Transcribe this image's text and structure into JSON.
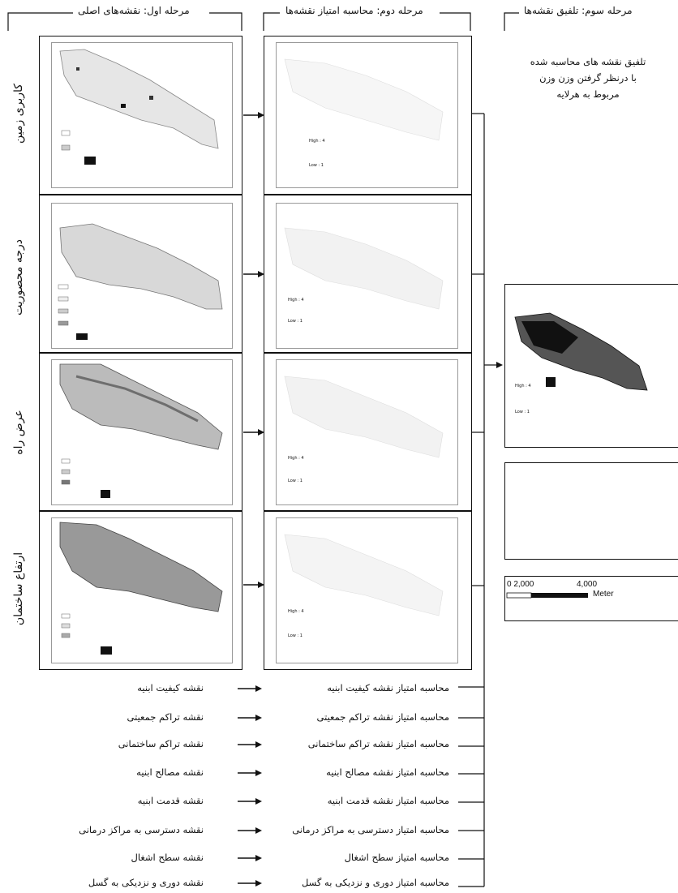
{
  "stages": {
    "stage1_title": "مرحله اول: نقشه‌های اصلی",
    "stage2_title": "مرحله دوم: محاسبه امتیاز نقشه‌ها",
    "stage3_title": "مرحله سوم: تلفیق نقشه‌ها"
  },
  "stage1_rows": [
    {
      "label": "کاربری زمین"
    },
    {
      "label": "درجه محصوریت"
    },
    {
      "label": "عرض راه"
    },
    {
      "label": "ارتفاع ساختمان"
    }
  ],
  "score_labels": {
    "high": "High : 4",
    "low": "Low : 1"
  },
  "stage3": {
    "description_line1": "تلفیق نقشه های محاسبه شده",
    "description_line2": "با درنظر گرفتن وزن وزن",
    "description_line3": "مربوط به هرلایه",
    "scale_0": "0  2,000",
    "scale_4000": "4,000",
    "scale_unit": "Meter"
  },
  "lists": {
    "left": [
      "نقشه کیفیت ابنیه",
      "نقشه تراکم جمعیتی",
      "نقشه تراکم ساختمانی",
      "نقشه مصالح ابنیه",
      "نقشه قدمت ابنیه",
      "نقشه دسترسی به مراکز درمانی",
      "نقشه سطح اشغال",
      "نقشه دوری و نزدیکی به گسل"
    ],
    "right": [
      "محاسبه امتیاز نقشه کیفیت ابنیه",
      "محاسبه امتیاز نقشه تراکم جمعیتی",
      "محاسبه امتیاز نقشه تراکم ساختمانی",
      "محاسبه امتیاز نقشه مصالح ابنیه",
      "محاسبه امتیاز نقشه قدمت ابنیه",
      "محاسبه امتیاز دسترسی به مراکز درمانی",
      "محاسبه امتیاز سطح اشغال",
      "محاسبه امتیاز دوری و نزدیکی به گسل"
    ]
  }
}
